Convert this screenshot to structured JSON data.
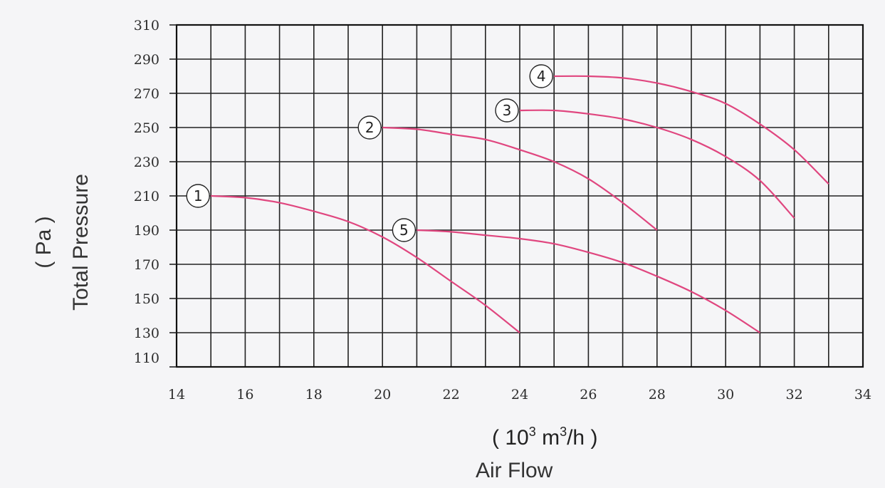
{
  "chart_data": {
    "type": "line",
    "xlabel": "Air Flow",
    "xunit": {
      "open": "(",
      "base": "10",
      "exp1": "3",
      "mid": "m",
      "exp2": "3",
      "tail": "/h",
      "close": ")"
    },
    "ylabel": "Total  Pressure",
    "yunit": "( Pa )",
    "xlim": [
      14,
      34
    ],
    "ylim": [
      110,
      310
    ],
    "xticks": [
      14,
      16,
      18,
      20,
      22,
      24,
      26,
      28,
      30,
      32,
      34
    ],
    "yticks": [
      110,
      130,
      150,
      170,
      190,
      210,
      230,
      250,
      270,
      290,
      310
    ],
    "grid": true,
    "curve_color": "#e0467f",
    "series": [
      {
        "name": "1",
        "marker": "①",
        "x": [
          15,
          16,
          17,
          18,
          19,
          20,
          21,
          22,
          23,
          24
        ],
        "y": [
          210,
          209,
          206,
          201,
          195,
          186,
          174,
          160,
          146,
          130
        ]
      },
      {
        "name": "2",
        "marker": "②",
        "x": [
          20,
          21,
          22,
          23,
          24,
          25,
          26,
          27,
          28
        ],
        "y": [
          250,
          249,
          246,
          243,
          237,
          230,
          220,
          206,
          190
        ]
      },
      {
        "name": "3",
        "marker": "③",
        "x": [
          24,
          25,
          26,
          27,
          28,
          29,
          30,
          31,
          32
        ],
        "y": [
          260,
          260,
          258,
          255,
          250,
          243,
          233,
          219,
          197
        ]
      },
      {
        "name": "4",
        "marker": "④",
        "x": [
          25,
          26,
          27,
          28,
          29,
          30,
          31,
          32,
          33
        ],
        "y": [
          280,
          280,
          279,
          276,
          271,
          264,
          252,
          237,
          217
        ]
      },
      {
        "name": "5",
        "marker": "⑤",
        "x": [
          21,
          22,
          23,
          24,
          25,
          26,
          27,
          28,
          29,
          30,
          31
        ],
        "y": [
          190,
          189,
          187,
          185,
          182,
          177,
          171,
          163,
          154,
          143,
          130
        ]
      }
    ]
  }
}
